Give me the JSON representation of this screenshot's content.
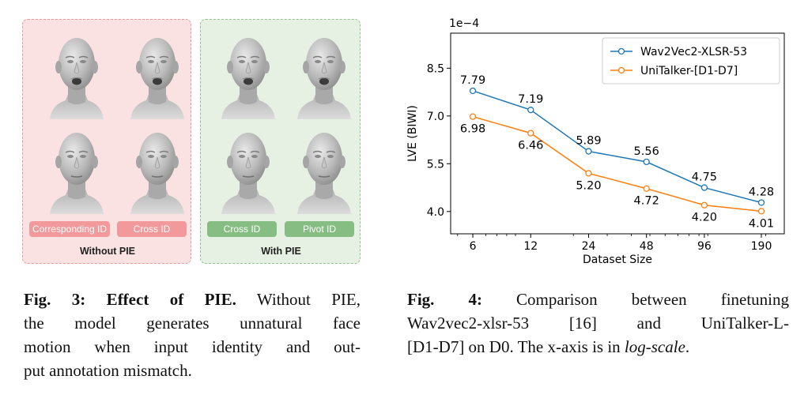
{
  "fig3": {
    "left_panel": {
      "tags": [
        "Corresponding ID",
        "Cross ID"
      ],
      "caption": "Without PIE",
      "faces": [
        "face-mouth-open",
        "face-mouth-open",
        "face-mouth-closed",
        "face-mouth-closed"
      ]
    },
    "right_panel": {
      "tags": [
        "Cross ID",
        "Pivot ID"
      ],
      "caption": "With PIE",
      "faces": [
        "face-mouth-open",
        "face-mouth-open",
        "face-mouth-closed",
        "face-mouth-closed"
      ]
    },
    "colors": {
      "without_bg": "#fbe2e2",
      "with_bg": "#e6f1e3",
      "tag_red": "#f2999b",
      "tag_green": "#86bd82"
    }
  },
  "captions": {
    "fig3": {
      "label": "Fig. 3: Effect of PIE.",
      "lines": [
        "Without PIE,",
        "the model generates unnatural face",
        "motion when input identity and out-",
        "put annotation mismatch."
      ]
    },
    "fig4": {
      "label": "Fig. 4:",
      "line1": "Comparison between finetuning",
      "line2": "Wav2vec2-xlsr-53 [16] and UniTalker-L-",
      "line3_pre": "[D1-D7] on D0. The x-axis is in ",
      "line3_em": "log-scale",
      "line3_post": "."
    }
  },
  "chart_data": {
    "type": "line",
    "x": [
      6,
      12,
      24,
      48,
      96,
      190
    ],
    "x_tick_labels": [
      "6",
      "12",
      "24",
      "48",
      "96",
      "190"
    ],
    "x_scale": "log",
    "xlabel": "Dataset Size",
    "ylabel": "LVE (BIWI)",
    "y_scale_note": "1e−4",
    "y_ticks": [
      4.0,
      5.5,
      7.0,
      8.5
    ],
    "y_tick_labels": [
      "4.0",
      "5.5",
      "7.0",
      "8.5"
    ],
    "ylim": [
      3.3,
      9.6
    ],
    "grid": false,
    "legend_position": "top-right",
    "series": [
      {
        "name": "Wav2Vec2-XLSR-53",
        "color": "#1f77b4",
        "values": [
          7.79,
          7.19,
          5.89,
          5.56,
          4.75,
          4.28
        ],
        "labels": [
          "7.79",
          "7.19",
          "5.89",
          "5.56",
          "4.75",
          "4.28"
        ],
        "label_position": "above"
      },
      {
        "name": "UniTalker-[D1-D7]",
        "color": "#ff7f0e",
        "values": [
          6.98,
          6.46,
          5.2,
          4.72,
          4.2,
          4.01
        ],
        "labels": [
          "6.98",
          "6.46",
          "5.20",
          "4.72",
          "4.20",
          "4.01"
        ],
        "label_position": "below"
      }
    ]
  }
}
